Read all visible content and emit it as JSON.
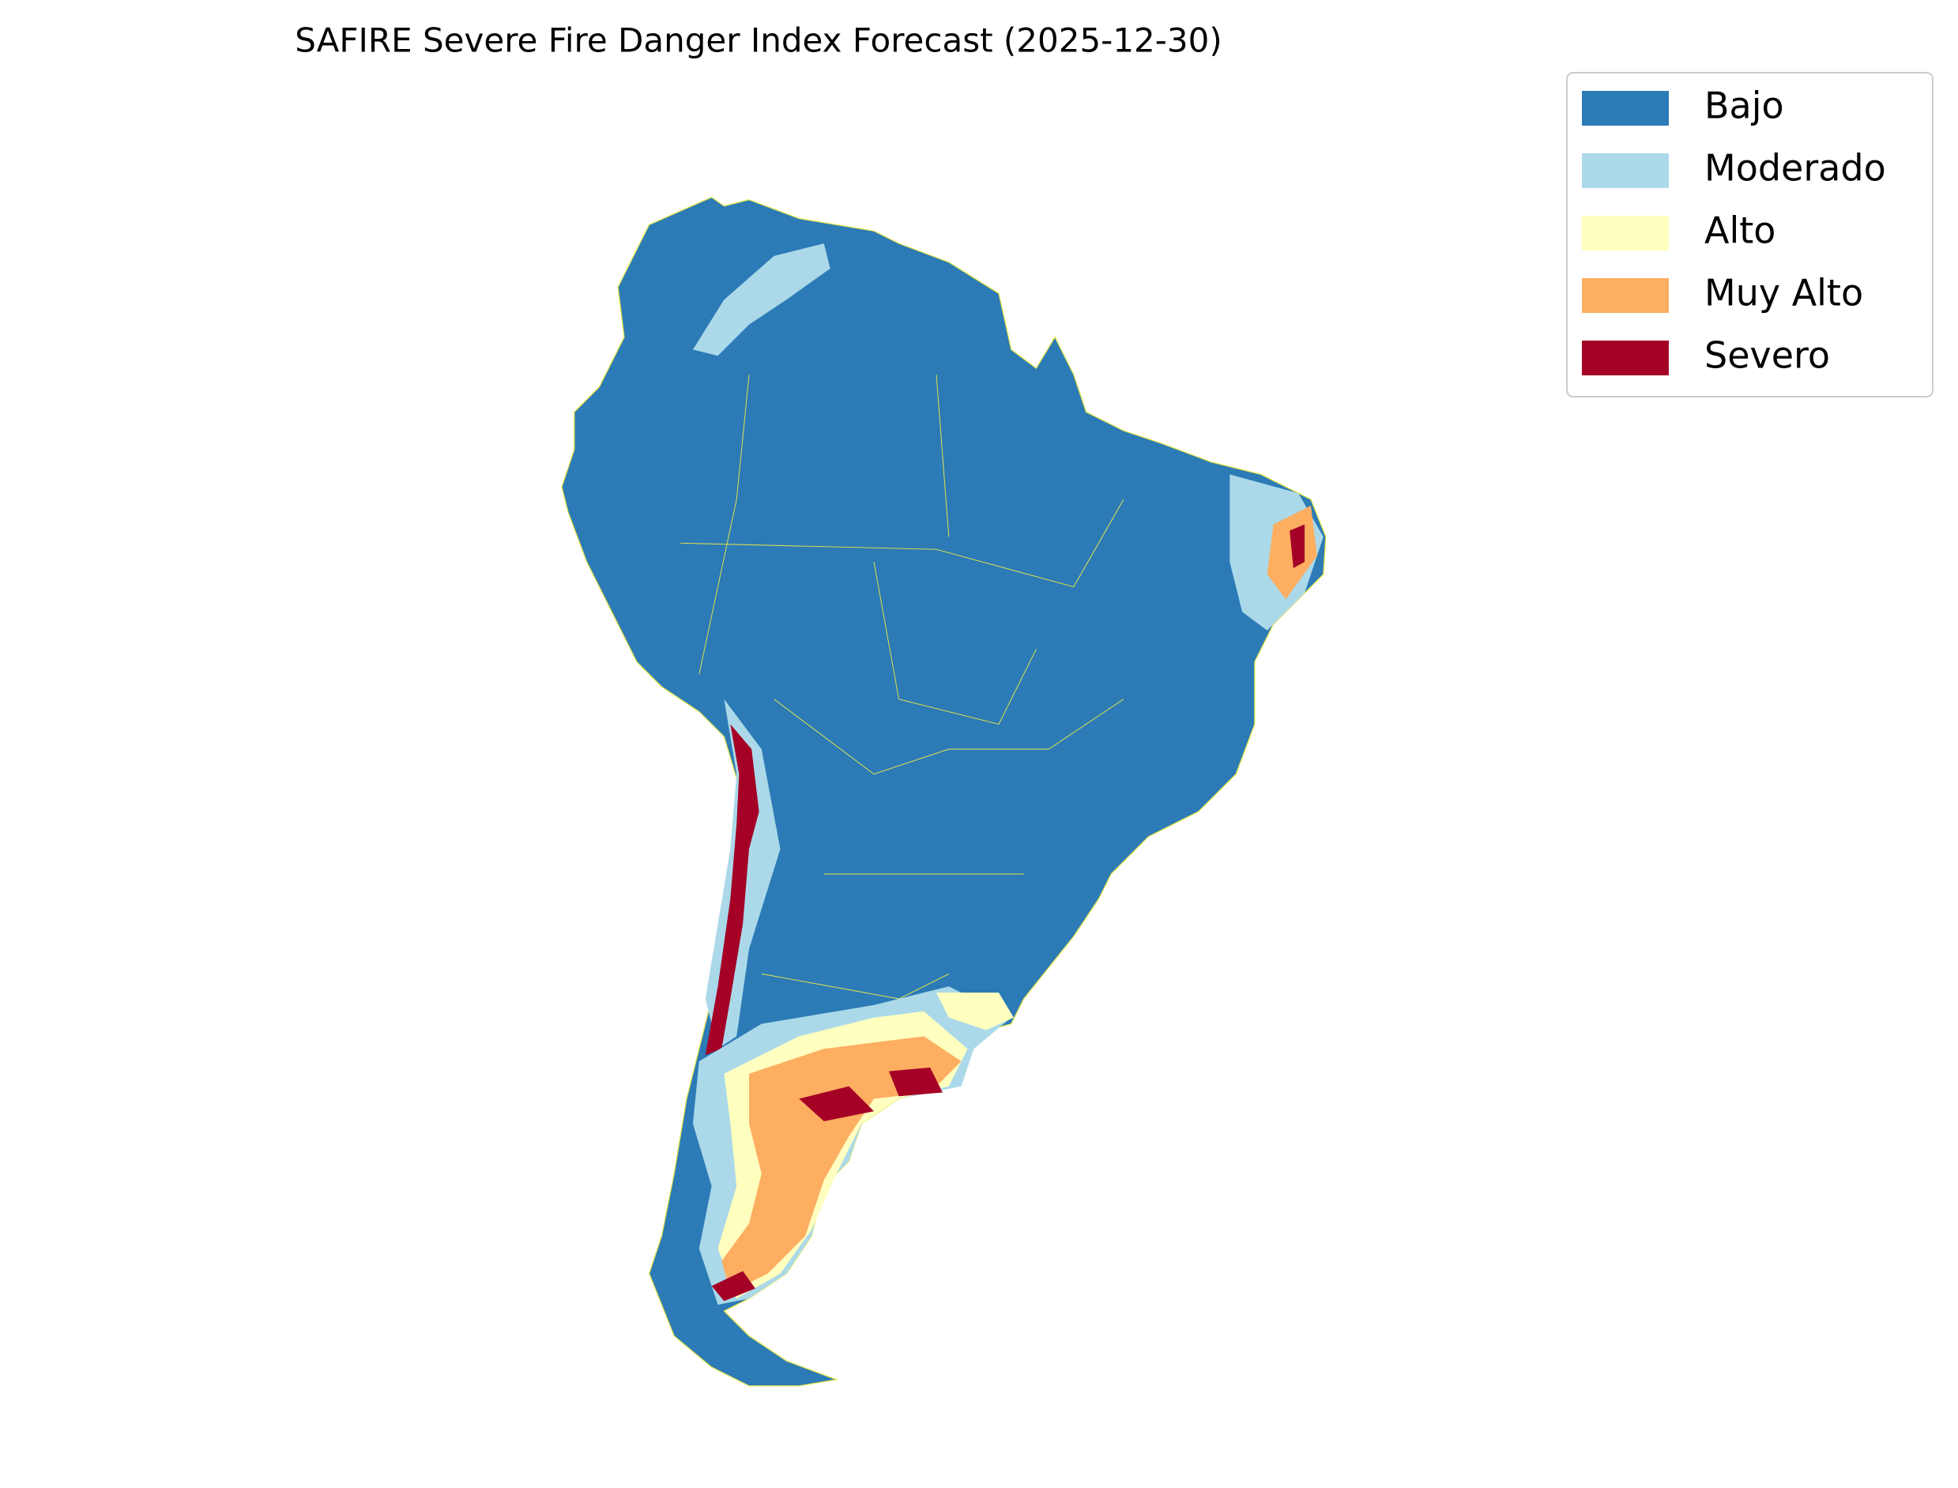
{
  "title": "SAFIRE Severe Fire Danger Index Forecast (2025-12-30)",
  "legend": [
    {
      "label": "Bajo",
      "color": "#2c7bb6"
    },
    {
      "label": "Moderado",
      "color": "#abd9e9"
    },
    {
      "label": "Alto",
      "color": "#ffffbf"
    },
    {
      "label": "Muy Alto",
      "color": "#fdae61"
    },
    {
      "label": "Severo",
      "color": "#a50026"
    }
  ]
}
